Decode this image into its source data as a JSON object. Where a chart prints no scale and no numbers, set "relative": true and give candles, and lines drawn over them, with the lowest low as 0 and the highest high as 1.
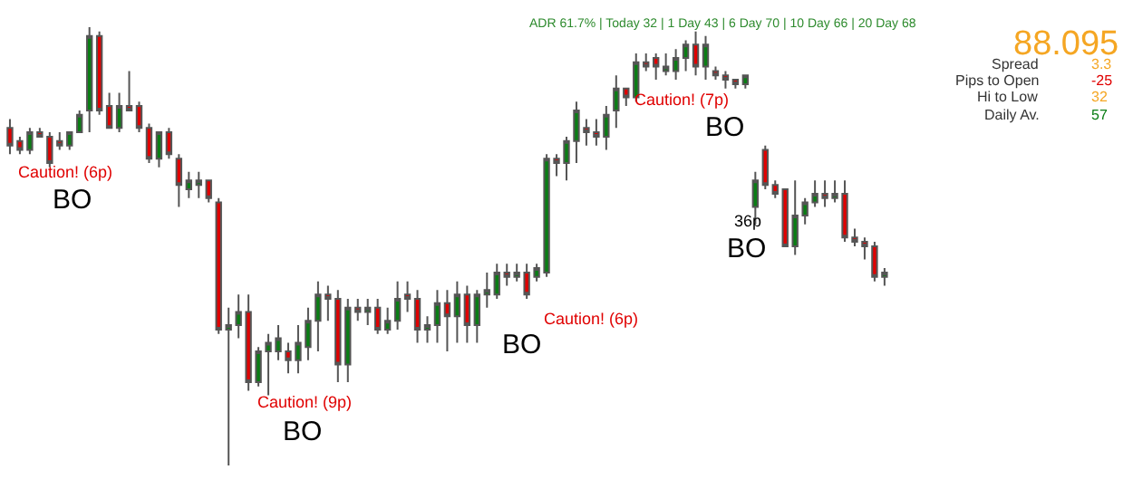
{
  "chart_data": {
    "type": "candlestick",
    "relative": true,
    "categories": [
      null,
      null,
      null,
      null,
      null,
      null,
      null,
      null,
      null,
      null,
      null,
      null,
      null,
      null,
      null,
      null,
      null,
      null,
      null,
      null,
      null,
      null,
      null,
      null,
      null,
      null,
      null,
      null,
      null,
      null,
      null,
      null,
      null,
      null,
      null,
      null,
      null,
      null,
      null,
      null,
      null,
      null,
      null,
      null,
      null,
      null,
      null,
      null,
      null,
      null,
      null,
      null,
      null,
      null,
      null,
      null,
      null,
      null,
      null,
      null,
      null,
      null,
      null,
      null,
      null,
      null,
      null,
      null,
      null,
      null,
      null,
      null,
      null,
      null,
      null,
      null,
      null,
      null,
      null,
      null,
      null,
      null,
      null,
      null,
      null,
      null,
      null,
      null,
      null
    ],
    "ohlc": [
      [
        0.77,
        0.79,
        0.71,
        0.73
      ],
      [
        0.74,
        0.75,
        0.71,
        0.72
      ],
      [
        0.72,
        0.77,
        0.71,
        0.76
      ],
      [
        0.76,
        0.77,
        0.75,
        0.75
      ],
      [
        0.75,
        0.76,
        0.68,
        0.69
      ],
      [
        0.74,
        0.76,
        0.72,
        0.73
      ],
      [
        0.73,
        0.76,
        0.72,
        0.76
      ],
      [
        0.76,
        0.81,
        0.76,
        0.8
      ],
      [
        0.81,
        1.0,
        0.76,
        0.98
      ],
      [
        0.98,
        0.99,
        0.8,
        0.81
      ],
      [
        0.82,
        0.85,
        0.77,
        0.77
      ],
      [
        0.77,
        0.85,
        0.76,
        0.82
      ],
      [
        0.82,
        0.9,
        0.81,
        0.81
      ],
      [
        0.82,
        0.83,
        0.76,
        0.77
      ],
      [
        0.77,
        0.78,
        0.69,
        0.7
      ],
      [
        0.7,
        0.76,
        0.68,
        0.76
      ],
      [
        0.76,
        0.77,
        0.7,
        0.71
      ],
      [
        0.7,
        0.71,
        0.59,
        0.64
      ],
      [
        0.63,
        0.67,
        0.61,
        0.65
      ],
      [
        0.64,
        0.67,
        0.61,
        0.65
      ],
      [
        0.65,
        0.65,
        0.6,
        0.61
      ],
      [
        0.6,
        0.61,
        0.3,
        0.31
      ],
      [
        0.31,
        0.36,
        0,
        0.32
      ],
      [
        0.32,
        0.39,
        0.29,
        0.35
      ],
      [
        0.35,
        0.39,
        0.17,
        0.19
      ],
      [
        0.19,
        0.27,
        0.18,
        0.26
      ],
      [
        0.26,
        0.3,
        0.16,
        0.28
      ],
      [
        0.26,
        0.32,
        0.24,
        0.29
      ],
      [
        0.26,
        0.28,
        0.21,
        0.24
      ],
      [
        0.24,
        0.32,
        0.21,
        0.28
      ],
      [
        0.27,
        0.36,
        0.24,
        0.33
      ],
      [
        0.33,
        0.42,
        0.26,
        0.39
      ],
      [
        0.39,
        0.41,
        0.33,
        0.38
      ],
      [
        0.38,
        0.4,
        0.19,
        0.23
      ],
      [
        0.23,
        0.38,
        0.19,
        0.36
      ],
      [
        0.36,
        0.38,
        0.33,
        0.35
      ],
      [
        0.35,
        0.38,
        0.32,
        0.36
      ],
      [
        0.36,
        0.38,
        0.3,
        0.31
      ],
      [
        0.31,
        0.36,
        0.3,
        0.33
      ],
      [
        0.33,
        0.42,
        0.31,
        0.38
      ],
      [
        0.39,
        0.42,
        0.35,
        0.38
      ],
      [
        0.38,
        0.4,
        0.28,
        0.31
      ],
      [
        0.31,
        0.34,
        0.28,
        0.32
      ],
      [
        0.32,
        0.4,
        0.28,
        0.37
      ],
      [
        0.37,
        0.4,
        0.26,
        0.34
      ],
      [
        0.34,
        0.42,
        0.28,
        0.39
      ],
      [
        0.39,
        0.41,
        0.28,
        0.32
      ],
      [
        0.32,
        0.4,
        0.28,
        0.39
      ],
      [
        0.39,
        0.44,
        0.36,
        0.4
      ],
      [
        0.39,
        0.46,
        0.38,
        0.44
      ],
      [
        0.44,
        0.46,
        0.41,
        0.43
      ],
      [
        0.43,
        0.46,
        0.42,
        0.44
      ],
      [
        0.44,
        0.46,
        0.38,
        0.39
      ],
      [
        0.43,
        0.46,
        0.42,
        0.45
      ],
      [
        0.44,
        0.71,
        0.43,
        0.7
      ],
      [
        0.7,
        0.71,
        0.66,
        0.69
      ],
      [
        0.69,
        0.75,
        0.65,
        0.74
      ],
      [
        0.74,
        0.83,
        0.69,
        0.81
      ],
      [
        0.77,
        0.79,
        0.73,
        0.76
      ],
      [
        0.76,
        0.79,
        0.73,
        0.75
      ],
      [
        0.75,
        0.82,
        0.72,
        0.8
      ],
      [
        0.81,
        0.89,
        0.77,
        0.86
      ],
      [
        0.86,
        0.86,
        0.82,
        0.84
      ],
      [
        0.84,
        0.94,
        0.83,
        0.92
      ],
      [
        0.92,
        0.94,
        0.9,
        0.91
      ],
      [
        0.93,
        0.94,
        0.88,
        0.91
      ],
      [
        0.9,
        0.94,
        0.89,
        0.91
      ],
      [
        0.9,
        0.95,
        0.88,
        0.93
      ],
      [
        0.93,
        0.97,
        0.9,
        0.96
      ],
      [
        0.96,
        0.99,
        0.89,
        0.91
      ],
      [
        0.91,
        0.98,
        0.88,
        0.96
      ],
      [
        0.9,
        0.91,
        0.88,
        0.89
      ],
      [
        0.89,
        0.9,
        0.86,
        0.88
      ],
      [
        0.88,
        0.88,
        0.86,
        0.87
      ],
      [
        0.87,
        0.89,
        0.86,
        0.89
      ],
      [
        0.59,
        0.67,
        0.55,
        0.65
      ],
      [
        0.72,
        0.73,
        0.63,
        0.64
      ],
      [
        0.64,
        0.65,
        0.61,
        0.62
      ],
      [
        0.63,
        0.63,
        0.5,
        0.5
      ],
      [
        0.5,
        0.65,
        0.48,
        0.57
      ],
      [
        0.57,
        0.61,
        0.55,
        0.6
      ],
      [
        0.6,
        0.65,
        0.59,
        0.62
      ],
      [
        0.62,
        0.65,
        0.59,
        0.61
      ],
      [
        0.61,
        0.65,
        0.6,
        0.62
      ],
      [
        0.62,
        0.65,
        0.51,
        0.52
      ],
      [
        0.52,
        0.54,
        0.5,
        0.51
      ],
      [
        0.51,
        0.52,
        0.47,
        0.5
      ],
      [
        0.5,
        0.51,
        0.42,
        0.43
      ],
      [
        0.43,
        0.45,
        0.41,
        0.44
      ]
    ],
    "annotations": [
      "Caution! (6p)",
      "BO",
      "Caution! (9p)",
      "BO",
      "Caution! (6p)",
      "BO",
      "Caution! (7p)",
      "BO",
      "36p",
      "BO",
      "ADR 61.7% | Today 32 | 1 Day 43 | 6 Day 70 | 10 Day 66 | 20 Day 68",
      "88.095",
      "Spread",
      "3.3",
      "Pips to Open",
      "-25",
      "Hi to Low",
      "32",
      "Daily Av.",
      "57"
    ]
  }
}
